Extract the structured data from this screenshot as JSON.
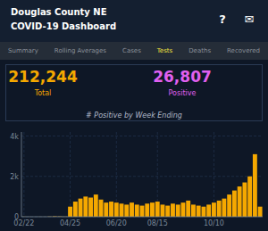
{
  "page": {
    "title_lines": [
      "Douglas County NE",
      "COVID-19 Dashboard"
    ],
    "icons": [
      "?",
      "✉"
    ],
    "nav_items": [
      "Summary",
      "Rolling Averages",
      "Cases",
      "Tests",
      "Deaths",
      "Recovered"
    ],
    "active_nav": "Tests",
    "total_tests": "212,244",
    "total_label": "Total",
    "positive_tests": "26,807",
    "positive_label": "Positive"
  },
  "chart_data": {
    "type": "bar",
    "title": "# Positive by Week Ending",
    "color": "#f5a800",
    "categories": [
      "02/22",
      null,
      null,
      null,
      null,
      null,
      null,
      null,
      null,
      "04/25",
      null,
      null,
      null,
      null,
      null,
      null,
      null,
      null,
      "06/20",
      null,
      null,
      null,
      null,
      null,
      null,
      null,
      "08/15",
      null,
      null,
      null,
      null,
      null,
      null,
      null,
      null,
      null,
      null,
      "10/10",
      null,
      null,
      null,
      null,
      null,
      null,
      null,
      null,
      null
    ],
    "values": [
      5,
      2,
      1,
      3,
      2,
      10,
      20,
      15,
      8,
      500,
      750,
      900,
      1000,
      950,
      1100,
      850,
      700,
      750,
      700,
      650,
      600,
      700,
      600,
      550,
      650,
      700,
      750,
      600,
      550,
      650,
      600,
      700,
      800,
      600,
      550,
      500,
      600,
      700,
      800,
      900,
      1100,
      1300,
      1500,
      1700,
      2000,
      3100,
      500
    ],
    "ylim": [
      0,
      4200
    ],
    "yticks": [
      0,
      {
        "value": 2000,
        "label": "2k"
      },
      {
        "value": 4000,
        "label": "4k"
      }
    ],
    "grid": true
  }
}
